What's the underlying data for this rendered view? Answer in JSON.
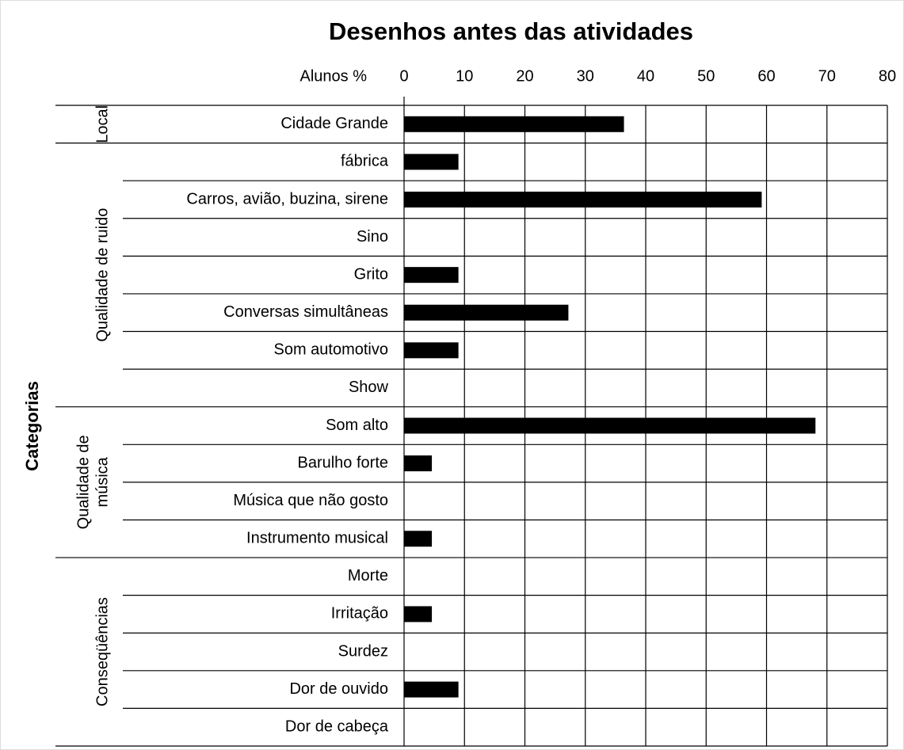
{
  "chart_data": {
    "type": "bar",
    "orientation": "horizontal",
    "title": "Desenhos antes das atividades",
    "xlabel": "Alunos %",
    "ylabel": "Categorias",
    "xlim": [
      0,
      80
    ],
    "xticks": [
      0,
      10,
      20,
      30,
      40,
      50,
      60,
      70,
      80
    ],
    "grid": true,
    "color": "#000000",
    "groups": [
      {
        "name": [
          "Local"
        ],
        "categories": [
          "Cidade Grande"
        ],
        "values": [
          36.4
        ]
      },
      {
        "name": [
          "Qualidade de ruido"
        ],
        "categories": [
          "fábrica",
          "Carros, avião, buzina, sirene",
          "Sino",
          "Grito",
          "Conversas simultâneas",
          "Som automotivo",
          "Show"
        ],
        "values": [
          9,
          59.2,
          0,
          9,
          27.2,
          9,
          0
        ]
      },
      {
        "name": [
          "Qualidade de",
          "música"
        ],
        "categories": [
          "Som alto",
          "Barulho forte",
          "Música que não gosto",
          "Instrumento musical"
        ],
        "values": [
          68.1,
          4.6,
          0,
          4.6
        ]
      },
      {
        "name": [
          "Conseqüências"
        ],
        "categories": [
          "Morte",
          "Irritação",
          "Surdez",
          "Dor de ouvido",
          "Dor de cabeça"
        ],
        "values": [
          0,
          4.6,
          0,
          9,
          0
        ]
      }
    ]
  }
}
